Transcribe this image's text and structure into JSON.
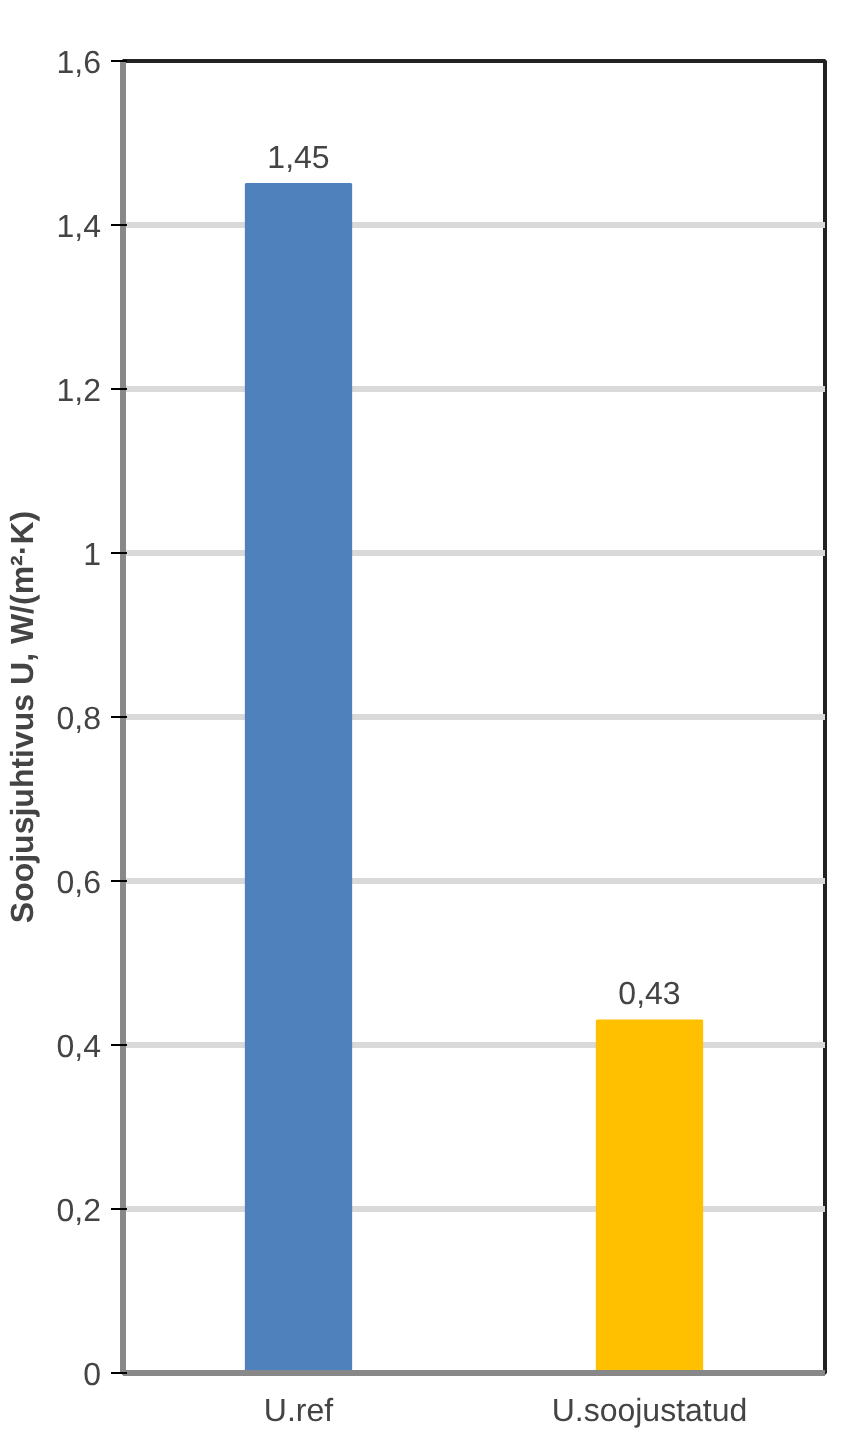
{
  "chart_data": {
    "type": "bar",
    "ylabel": "Soojusjuhtivus U, W/(m²·K)",
    "categories": [
      "U.ref",
      "U.soojustatud"
    ],
    "values": [
      1.45,
      0.43
    ],
    "colors": [
      "#4f81bd",
      "#ffc000"
    ],
    "value_labels": [
      "1,45",
      "0,43"
    ],
    "ylim": [
      0,
      1.6
    ],
    "yticks": [
      0,
      {
        "value": 0.2,
        "label": "0,2"
      },
      {
        "value": 0.4,
        "label": "0,4"
      },
      {
        "value": 0.6,
        "label": "0,6"
      },
      {
        "value": 0.8,
        "label": "0,8"
      },
      1,
      {
        "value": 1.2,
        "label": "1,2"
      },
      {
        "value": 1.4,
        "label": "1,4"
      },
      {
        "value": 1.6,
        "label": "1,6"
      }
    ],
    "grid": "y"
  }
}
